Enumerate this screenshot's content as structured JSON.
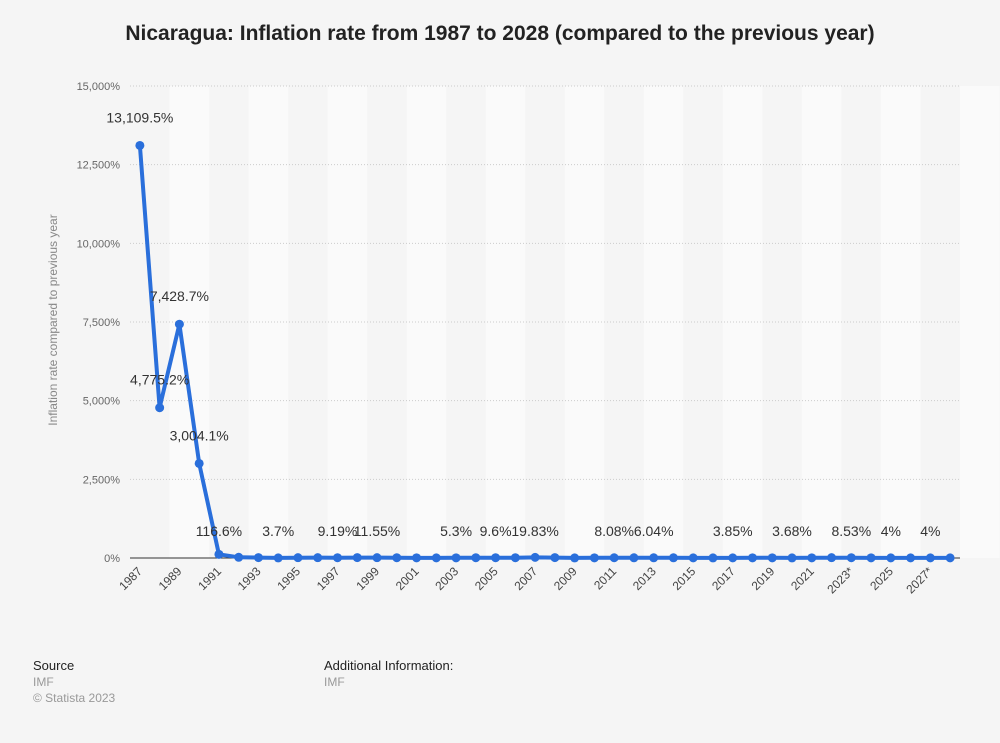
{
  "title": "Nicaragua: Inflation rate from 1987 to 2028 (compared to the previous year)",
  "footer": {
    "source_heading": "Source",
    "source_text": "IMF",
    "copyright": "© Statista 2023",
    "additional_heading": "Additional Information:",
    "additional_text": "IMF"
  },
  "colors": {
    "line": "#2a6fdb",
    "background": "#f5f5f5",
    "band": "#fafafa",
    "grid": "#cccccc",
    "axis": "#333333"
  },
  "chart_data": {
    "type": "line",
    "title": "Nicaragua: Inflation rate from 1987 to 2028 (compared to the previous year)",
    "xlabel": "",
    "ylabel": "Inflation rate compared to previous year",
    "ylim": [
      0,
      15000
    ],
    "yticks": [
      0,
      2500,
      5000,
      7500,
      10000,
      12500,
      15000
    ],
    "ytick_labels": [
      "0%",
      "2,500%",
      "5,000%",
      "7,500%",
      "10,000%",
      "12,500%",
      "15,000%"
    ],
    "grid": true,
    "categories": [
      "1987",
      "1988",
      "1989",
      "1990",
      "1991",
      "1992",
      "1993",
      "1994",
      "1995",
      "1996",
      "1997",
      "1998",
      "1999",
      "2000",
      "2001",
      "2002",
      "2003",
      "2004",
      "2005",
      "2006",
      "2007",
      "2008",
      "2009",
      "2010",
      "2011",
      "2012",
      "2013",
      "2014",
      "2015",
      "2016",
      "2017",
      "2018",
      "2019",
      "2020",
      "2021",
      "2022",
      "2023*",
      "2024*",
      "2025*",
      "2026*",
      "2027*",
      "2028*"
    ],
    "xtick_labels": [
      {
        "index": 0,
        "label": "1987"
      },
      {
        "index": 2,
        "label": "1989"
      },
      {
        "index": 4,
        "label": "1991"
      },
      {
        "index": 6,
        "label": "1993"
      },
      {
        "index": 8,
        "label": "1995"
      },
      {
        "index": 10,
        "label": "1997"
      },
      {
        "index": 12,
        "label": "1999"
      },
      {
        "index": 14,
        "label": "2001"
      },
      {
        "index": 16,
        "label": "2003"
      },
      {
        "index": 18,
        "label": "2005"
      },
      {
        "index": 20,
        "label": "2007"
      },
      {
        "index": 22,
        "label": "2009"
      },
      {
        "index": 24,
        "label": "2011"
      },
      {
        "index": 26,
        "label": "2013"
      },
      {
        "index": 28,
        "label": "2015"
      },
      {
        "index": 30,
        "label": "2017"
      },
      {
        "index": 32,
        "label": "2019"
      },
      {
        "index": 34,
        "label": "2021"
      },
      {
        "index": 36,
        "label": "2023*"
      },
      {
        "index": 38,
        "label": "2025"
      },
      {
        "index": 40,
        "label": "2027*"
      }
    ],
    "values": [
      13109.5,
      4775.2,
      7428.7,
      3004.1,
      116.6,
      21.9,
      13.5,
      3.7,
      10.9,
      11.6,
      9.19,
      13.0,
      11.55,
      9.9,
      4.7,
      4.0,
      5.3,
      8.5,
      9.6,
      9.1,
      19.83,
      13.8,
      3.7,
      5.5,
      8.08,
      7.2,
      6.04,
      6.0,
      4.0,
      3.51,
      3.85,
      4.95,
      5.38,
      3.68,
      4.93,
      10.47,
      8.53,
      4.5,
      4.0,
      4.0,
      4.0,
      4.0
    ],
    "data_labels": [
      {
        "index": 0,
        "label": "13,109.5%"
      },
      {
        "index": 1,
        "label": "4,775.2%"
      },
      {
        "index": 2,
        "label": "7,428.7%"
      },
      {
        "index": 3,
        "label": "3,004.1%"
      },
      {
        "index": 4,
        "label": "116.6%"
      },
      {
        "index": 7,
        "label": "3.7%"
      },
      {
        "index": 10,
        "label": "9.19%"
      },
      {
        "index": 12,
        "label": "11.55%"
      },
      {
        "index": 16,
        "label": "5.3%"
      },
      {
        "index": 18,
        "label": "9.6%"
      },
      {
        "index": 20,
        "label": "19.83%"
      },
      {
        "index": 24,
        "label": "8.08%"
      },
      {
        "index": 26,
        "label": "6.04%"
      },
      {
        "index": 30,
        "label": "3.85%"
      },
      {
        "index": 33,
        "label": "3.68%"
      },
      {
        "index": 36,
        "label": "8.53%"
      },
      {
        "index": 38,
        "label": "4%"
      },
      {
        "index": 40,
        "label": "4%"
      }
    ]
  }
}
